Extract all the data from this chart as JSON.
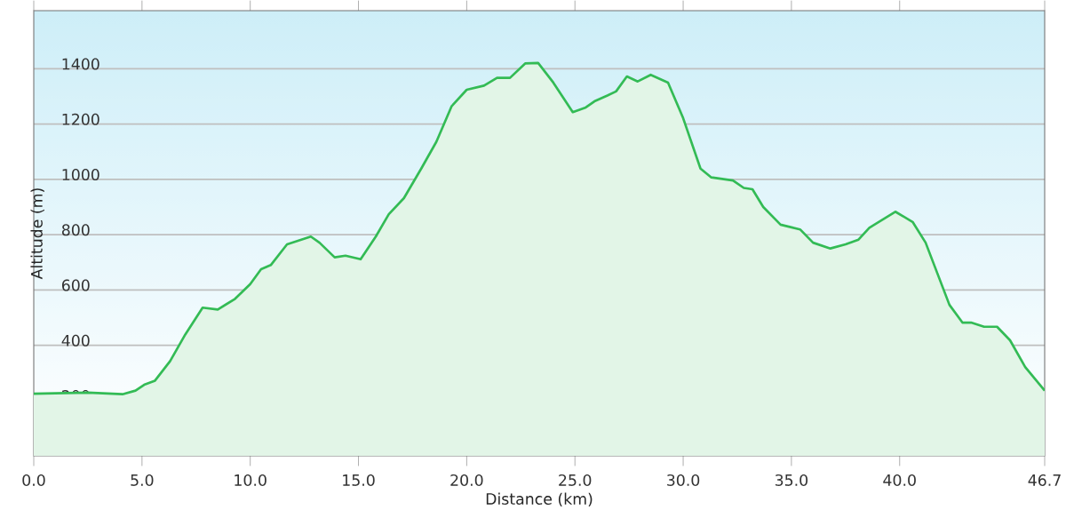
{
  "chart_data": {
    "type": "area",
    "xlabel": "Distance  (km)",
    "ylabel": "Altitude (m)",
    "x": [
      0,
      2.5,
      4.1,
      4.7,
      5.1,
      5.6,
      6.3,
      7.0,
      7.8,
      8.5,
      9.3,
      10.0,
      10.5,
      10.95,
      11.7,
      12.8,
      13.2,
      13.9,
      14.4,
      15.1,
      15.8,
      16.4,
      17.1,
      17.9,
      18.6,
      19.3,
      20.0,
      20.8,
      21.4,
      22.0,
      22.7,
      23.3,
      24.0,
      24.9,
      25.5,
      25.9,
      26.5,
      26.9,
      27.4,
      27.9,
      28.5,
      29.3,
      30.0,
      30.8,
      31.3,
      32.3,
      32.8,
      33.2,
      33.7,
      34.5,
      35.4,
      36.0,
      36.8,
      37.5,
      38.1,
      38.6,
      39.8,
      40.6,
      41.2,
      42.3,
      42.9,
      43.3,
      43.9,
      44.5,
      45.1,
      45.8,
      46.7
    ],
    "series": [
      {
        "color": "#33bb55",
        "values": [
          225,
          229,
          223,
          236,
          257,
          272,
          343,
          439,
          536,
          529,
          568,
          621,
          675,
          690,
          765,
          793,
          771,
          718,
          724,
          711,
          793,
          874,
          932,
          1039,
          1136,
          1264,
          1324,
          1339,
          1367,
          1367,
          1419,
          1421,
          1350,
          1243,
          1260,
          1282,
          1303,
          1318,
          1372,
          1354,
          1378,
          1350,
          1221,
          1039,
          1007,
          996,
          969,
          964,
          900,
          836,
          819,
          771,
          750,
          765,
          782,
          825,
          883,
          846,
          771,
          546,
          482,
          482,
          467,
          467,
          418,
          321,
          236
        ]
      }
    ],
    "xlim": [
      0,
      46.7
    ],
    "ylim": [
      0,
      1610
    ],
    "xticks": [
      {
        "value": 0,
        "label": "0.0"
      },
      {
        "value": 5,
        "label": "5.0"
      },
      {
        "value": 10,
        "label": "10.0"
      },
      {
        "value": 15,
        "label": "15.0"
      },
      {
        "value": 20,
        "label": "20.0"
      },
      {
        "value": 25,
        "label": "25.0"
      },
      {
        "value": 30,
        "label": "30.0"
      },
      {
        "value": 35,
        "label": "35.0"
      },
      {
        "value": 40,
        "label": "40.0"
      },
      {
        "value": 46.7,
        "label": "46.7"
      }
    ],
    "yticks": [
      200,
      400,
      600,
      800,
      1000,
      1200,
      1400
    ],
    "grid": "y"
  }
}
